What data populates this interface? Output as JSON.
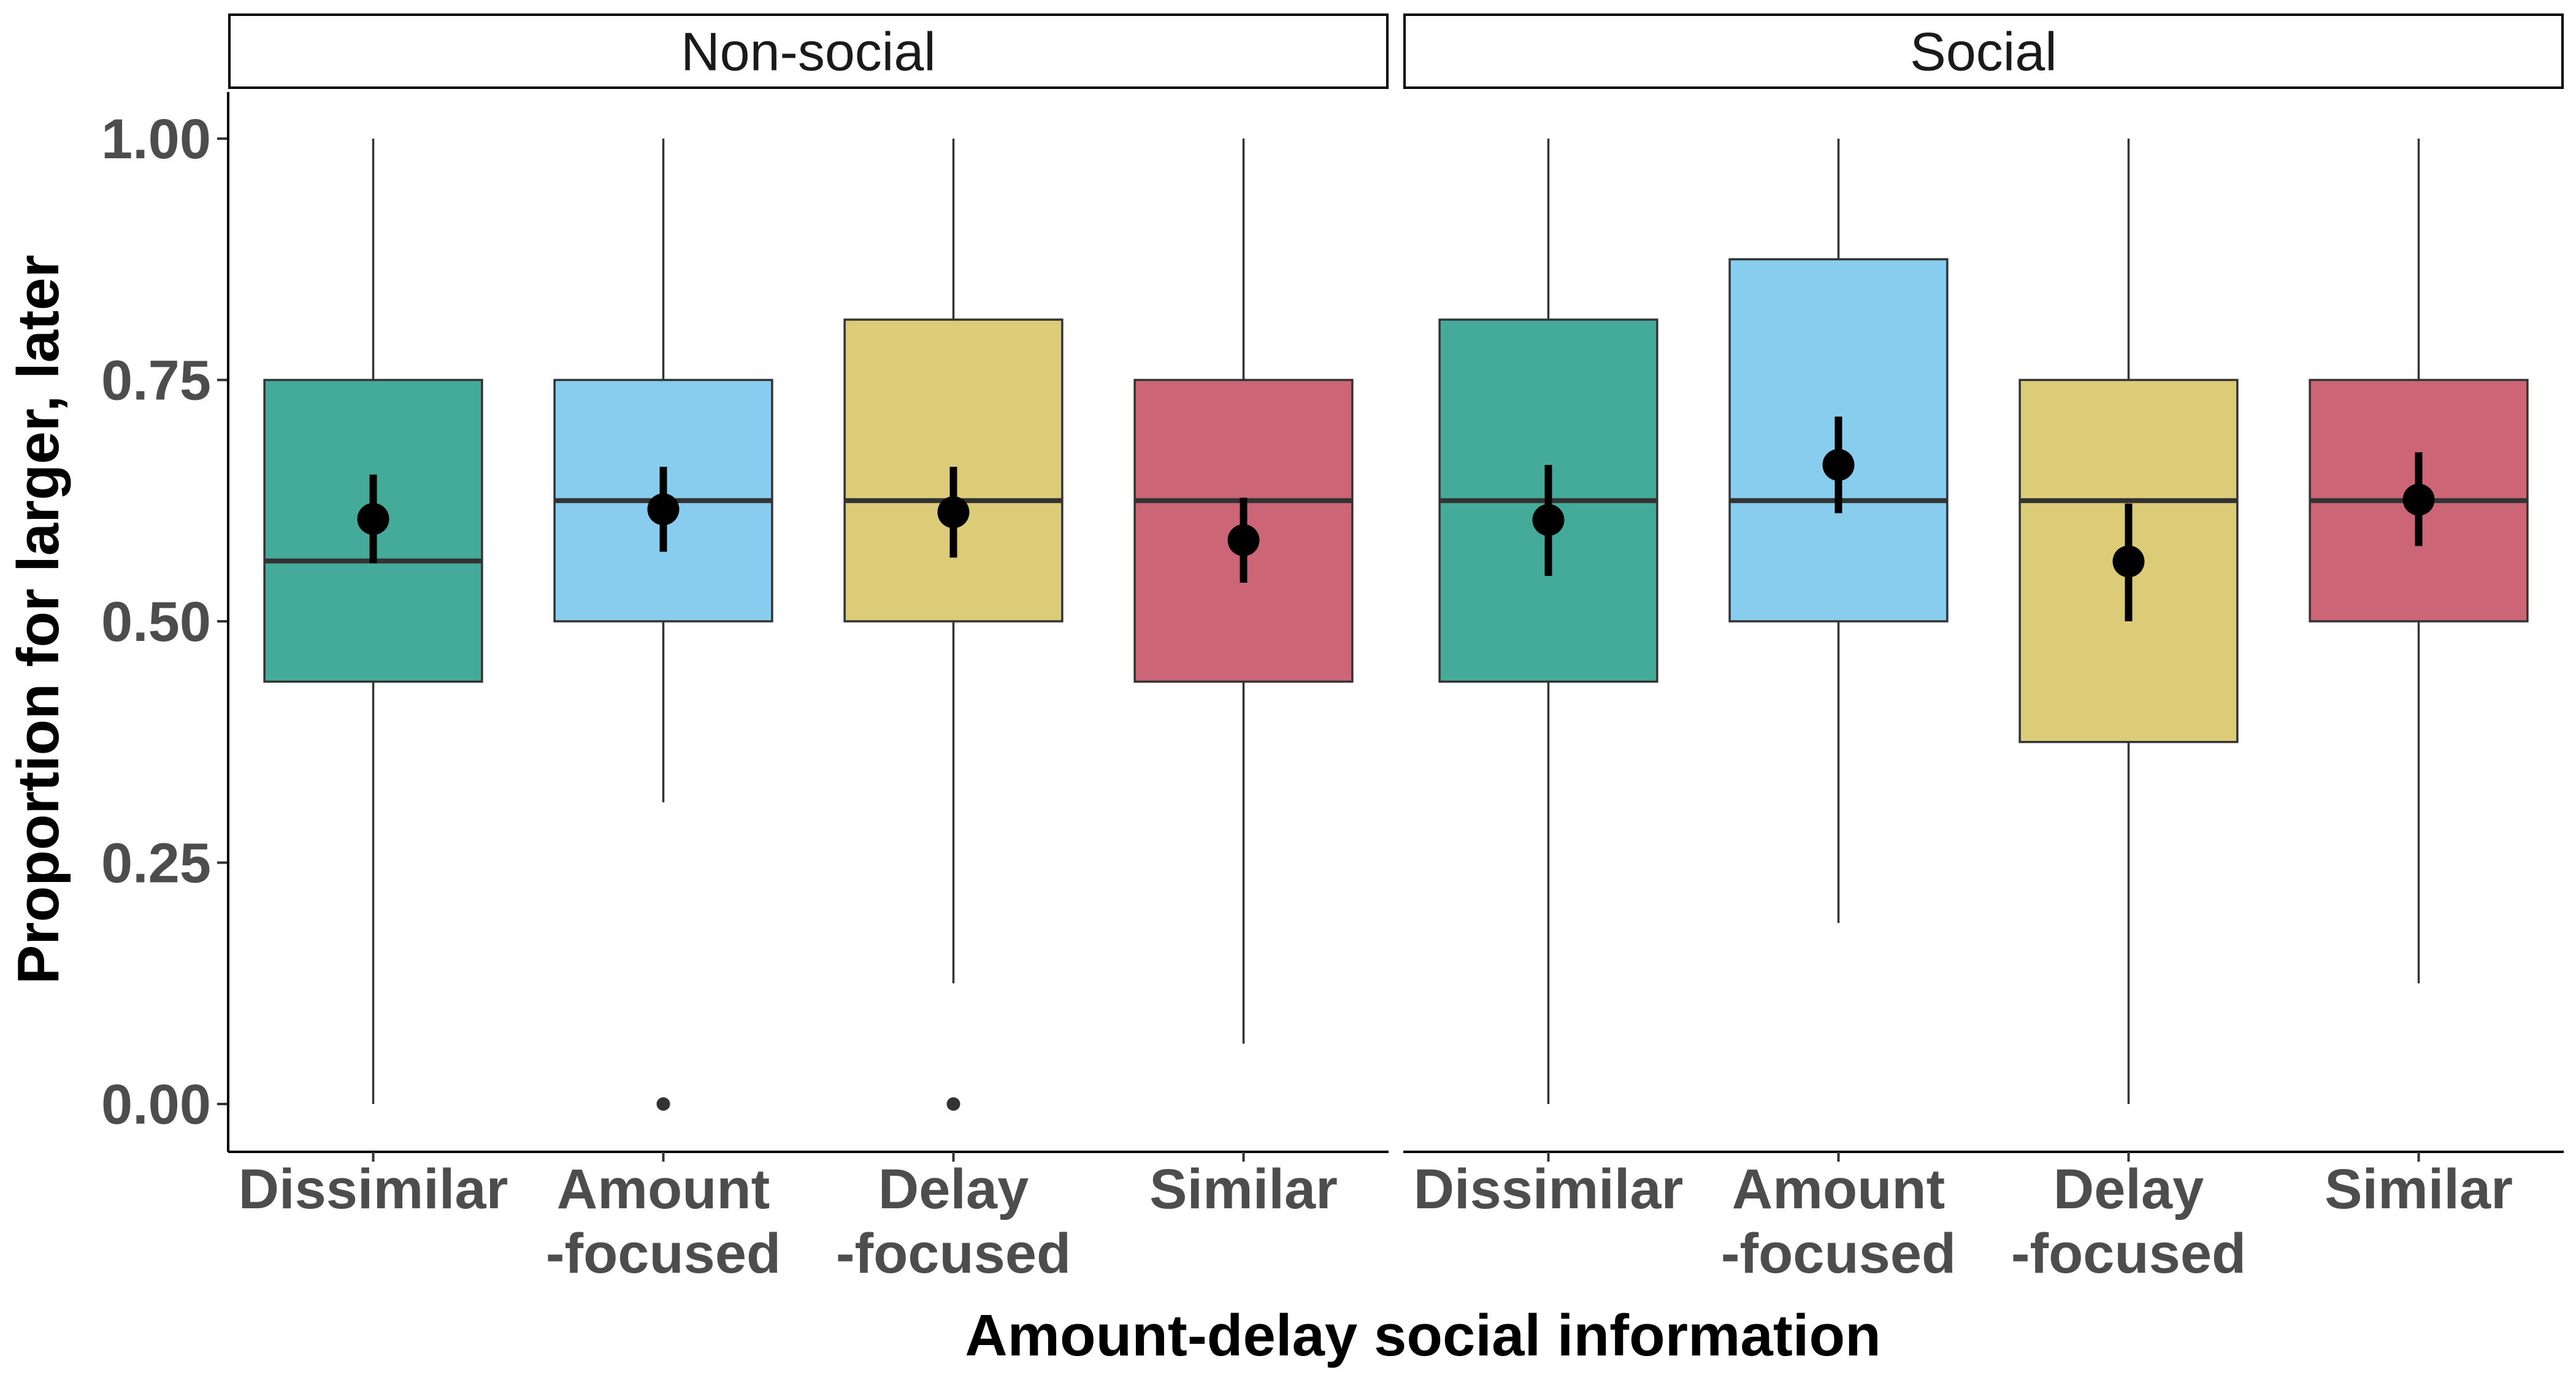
{
  "chart_data": {
    "type": "boxplot",
    "xlabel": "Amount-delay social information",
    "ylabel": "Proportion for larger, later",
    "ylim": [
      -0.05,
      1.05
    ],
    "yticks": [
      "0.00",
      "0.25",
      "0.50",
      "0.75",
      "1.00"
    ],
    "ytick_values": [
      0,
      0.25,
      0.5,
      0.75,
      1.0
    ],
    "grid": false,
    "legend": "none",
    "categories": [
      {
        "line1": "Dissimilar",
        "line2": ""
      },
      {
        "line1": "Amount",
        "line2": "-focused"
      },
      {
        "line1": "Delay",
        "line2": "-focused"
      },
      {
        "line1": "Similar",
        "line2": ""
      }
    ],
    "colors": [
      "#44AA99",
      "#88CCEE",
      "#DDCC77",
      "#CC6677"
    ],
    "panels": [
      {
        "name": "Non-social",
        "boxes": [
          {
            "lower_whisker": 0.0,
            "q1": 0.4375,
            "median": 0.5625,
            "q3": 0.75,
            "upper_whisker": 1.0,
            "mean": 0.606,
            "ci_low": 0.56,
            "ci_high": 0.652,
            "outliers": []
          },
          {
            "lower_whisker": 0.3125,
            "q1": 0.5,
            "median": 0.625,
            "q3": 0.75,
            "upper_whisker": 1.0,
            "mean": 0.616,
            "ci_low": 0.572,
            "ci_high": 0.66,
            "outliers": [
              0.0
            ]
          },
          {
            "lower_whisker": 0.125,
            "q1": 0.5,
            "median": 0.625,
            "q3": 0.8125,
            "upper_whisker": 1.0,
            "mean": 0.613,
            "ci_low": 0.566,
            "ci_high": 0.66,
            "outliers": [
              0.0
            ]
          },
          {
            "lower_whisker": 0.0625,
            "q1": 0.4375,
            "median": 0.625,
            "q3": 0.75,
            "upper_whisker": 1.0,
            "mean": 0.584,
            "ci_low": 0.54,
            "ci_high": 0.628,
            "outliers": []
          }
        ]
      },
      {
        "name": "Social",
        "boxes": [
          {
            "lower_whisker": 0.0,
            "q1": 0.4375,
            "median": 0.625,
            "q3": 0.8125,
            "upper_whisker": 1.0,
            "mean": 0.605,
            "ci_low": 0.547,
            "ci_high": 0.662,
            "outliers": []
          },
          {
            "lower_whisker": 0.1875,
            "q1": 0.5,
            "median": 0.625,
            "q3": 0.875,
            "upper_whisker": 1.0,
            "mean": 0.662,
            "ci_low": 0.612,
            "ci_high": 0.712,
            "outliers": []
          },
          {
            "lower_whisker": 0.0,
            "q1": 0.375,
            "median": 0.625,
            "q3": 0.75,
            "upper_whisker": 1.0,
            "mean": 0.562,
            "ci_low": 0.5,
            "ci_high": 0.622,
            "outliers": []
          },
          {
            "lower_whisker": 0.125,
            "q1": 0.5,
            "median": 0.625,
            "q3": 0.75,
            "upper_whisker": 1.0,
            "mean": 0.626,
            "ci_low": 0.578,
            "ci_high": 0.675,
            "outliers": []
          }
        ]
      }
    ]
  }
}
